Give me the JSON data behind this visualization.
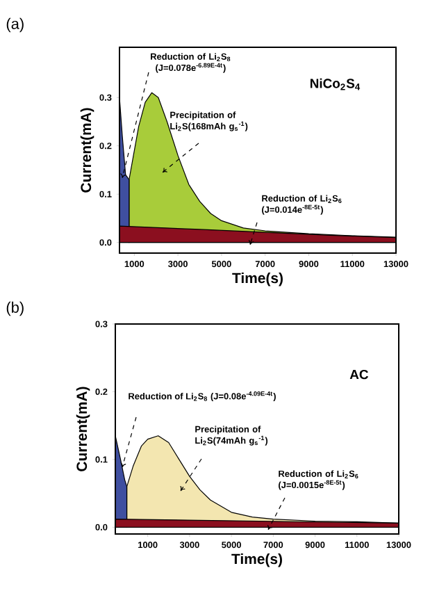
{
  "chart_data": [
    {
      "type": "area",
      "title": "NiCo$_{2}$S$_{4}$",
      "xlabel": "Time(s)",
      "ylabel": "Current(mA)",
      "xlim": [
        320,
        13000
      ],
      "xticks": [
        1000,
        3000,
        5000,
        7000,
        9000,
        11000,
        13000
      ],
      "ylim": [
        -0.022,
        0.404
      ],
      "yticks": [
        {
          "value": 0,
          "label": "0.0"
        },
        {
          "value": 0.1,
          "label": "0.1"
        },
        {
          "value": 0.2,
          "label": "0.2"
        },
        {
          "value": 0.3,
          "label": "0.3"
        }
      ],
      "series": [
        {
          "color": "#a8cc3a",
          "x": [
            760,
            1000,
            1200,
            1500,
            1800,
            2100,
            2500,
            3000,
            3500,
            4000,
            4500,
            5000,
            6000,
            7000,
            9000,
            11000,
            13000
          ],
          "values": [
            0.13,
            0.19,
            0.24,
            0.29,
            0.31,
            0.3,
            0.25,
            0.18,
            0.12,
            0.085,
            0.06,
            0.045,
            0.03,
            0.024,
            0.018,
            0.014,
            0.011
          ]
        },
        {
          "color": "#3f4fa0",
          "x": [
            320,
            450,
            600,
            760
          ],
          "values": [
            0.3,
            0.22,
            0.14,
            0.13
          ]
        },
        {
          "color": "#8b0f1f",
          "x": [
            320,
            4000,
            7000,
            10000,
            13000
          ],
          "values": [
            0.034,
            0.027,
            0.021,
            0.015,
            0.01
          ]
        }
      ],
      "annotations": [
        "(a)",
        "Reduction of Li$_{2}$S$_{8}$ (J=0.078e$^{-6.89E-4t}$)",
        "Precipitation of Li$_{2}$S(168mAh g$_{s}$$^{-1}$)",
        "Reduction of Li$_{2}$S$_{6}$ (J=0.014e$^{-8E-5t}$)"
      ]
    },
    {
      "type": "area",
      "title": "AC",
      "xlabel": "Time(s)",
      "ylabel": "Current(mA)",
      "xlim": [
        -550,
        13000
      ],
      "xticks": [
        1000,
        3000,
        5000,
        7000,
        9000,
        11000,
        13000
      ],
      "ylim": [
        -0.01,
        0.3
      ],
      "yticks": [
        {
          "value": 0,
          "label": "0.0"
        },
        {
          "value": 0.1,
          "label": "0.1"
        },
        {
          "value": 0.2,
          "label": "0.2"
        },
        {
          "value": 0.3,
          "label": "0.3"
        }
      ],
      "series": [
        {
          "color": "#f3e6b0",
          "x": [
            0,
            300,
            700,
            1000,
            1500,
            2000,
            2500,
            3000,
            3500,
            4000,
            5000,
            6000,
            7000,
            9000,
            11000,
            13000
          ],
          "values": [
            0.06,
            0.09,
            0.12,
            0.13,
            0.135,
            0.125,
            0.1,
            0.075,
            0.055,
            0.04,
            0.022,
            0.015,
            0.012,
            0.009,
            0.008,
            0.006
          ]
        },
        {
          "color": "#3f4fa0",
          "x": [
            -550,
            -300,
            -100,
            0
          ],
          "values": [
            0.135,
            0.1,
            0.07,
            0.06
          ]
        },
        {
          "color": "#8b0f1f",
          "x": [
            -550,
            13000
          ],
          "values": [
            0.012,
            0.006
          ]
        }
      ],
      "annotations": [
        "(b)",
        "Reduction of Li$_{2}$S$_{8}$ (J=0.08e$^{-4.09E-4t}$)",
        "Precipitation of Li$_{2}$S(74mAh g$_{s}$$^{-1}$)",
        "Reduction of Li$_{2}$S$_{6}$ (J=0.0015e$^{-8E-5t}$)"
      ]
    }
  ]
}
